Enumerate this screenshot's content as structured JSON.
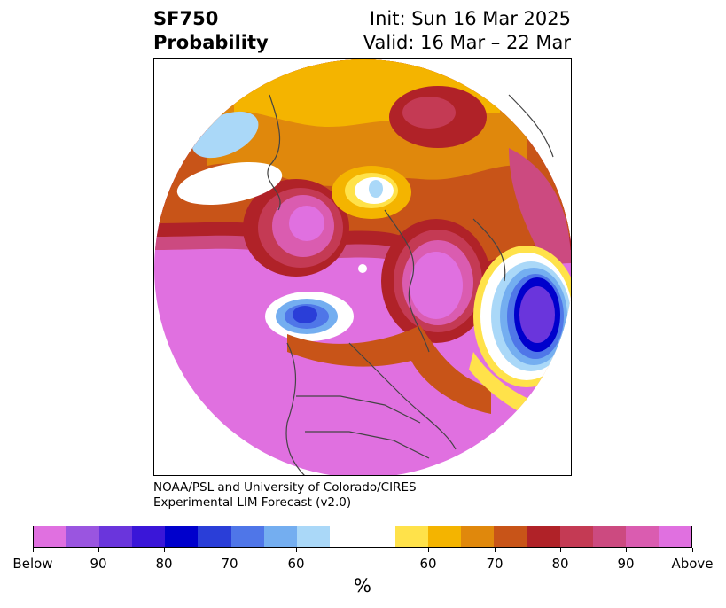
{
  "title": {
    "left_line1": "SF750",
    "left_line2": "Probability",
    "right_line1": "Init: Sun 16 Mar 2025",
    "right_line2": "Valid: 16 Mar – 22 Mar"
  },
  "credit": {
    "line1": "NOAA/PSL and University of Colorado/CIRES",
    "line2": "Experimental LIM Forecast (v2.0)"
  },
  "colorbar": {
    "colors": [
      "#e070e0",
      "#9a55e0",
      "#6a35dc",
      "#3a16d8",
      "#0000cc",
      "#2a3ed8",
      "#4f76e8",
      "#74aef0",
      "#aad8f8",
      "#ffffff",
      "#ffe24a",
      "#f4b400",
      "#e0880c",
      "#c85418",
      "#b02228",
      "#c43a54",
      "#cc4a80",
      "#da5cb0",
      "#e070e0"
    ],
    "tick_labels": [
      "Below",
      "90",
      "80",
      "70",
      "60",
      "60",
      "70",
      "80",
      "90",
      "Above"
    ],
    "unit": "%"
  }
}
